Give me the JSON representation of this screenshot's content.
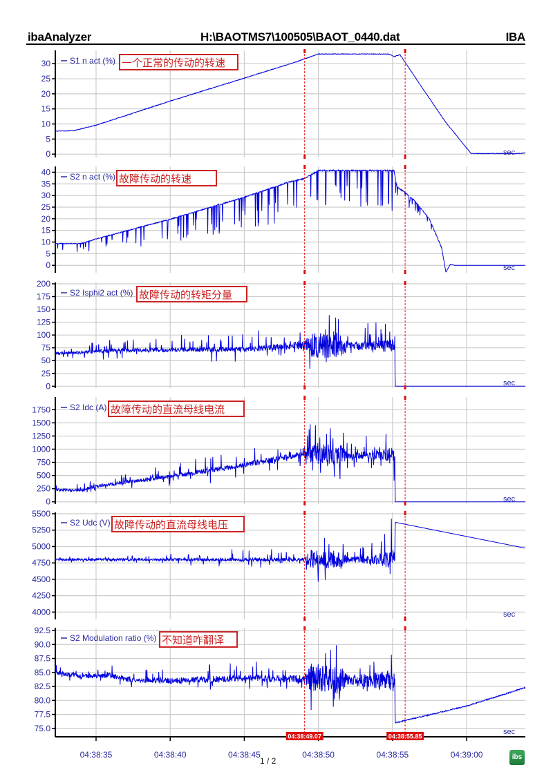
{
  "header": {
    "app": "ibaAnalyzer",
    "file": "H:\\BAOTMS7\\100505\\BAOT_0440.dat",
    "brand": "IBA"
  },
  "footer": {
    "page": "1 / 2",
    "logo": "ibs"
  },
  "colors": {
    "signal": "#0000dd",
    "annotation": "#cc2222",
    "cursor": "#dd1111",
    "axis_text": "#2a2aa0",
    "grid": "#cccccc"
  },
  "chart_data": {
    "type": "line",
    "x_unit_label": "sec",
    "x_range_seconds": [
      32.25,
      63.96
    ],
    "x_ticks": [
      {
        "t": 35,
        "label": "04:38:35"
      },
      {
        "t": 40,
        "label": "04:38:40"
      },
      {
        "t": 45,
        "label": "04:38:45"
      },
      {
        "t": 50,
        "label": "04:38:50"
      },
      {
        "t": 55,
        "label": "04:38:55"
      },
      {
        "t": 60,
        "label": "04:39:00"
      }
    ],
    "cursors": [
      {
        "t": 49.07,
        "label": "04:38:49.07"
      },
      {
        "t": 55.85,
        "label": "04:38:55.85"
      }
    ],
    "panels": [
      {
        "legend": "S1 n act (%)",
        "annotation": "一个正常的传动的转速",
        "ylim": [
          -1.1,
          34.4
        ],
        "yticks": [
          0,
          5,
          10,
          15,
          20,
          25,
          30
        ],
        "tick_labels": [
          "0",
          "5",
          "10",
          "15",
          "20",
          "25",
          "30"
        ],
        "mean": [
          [
            32.25,
            7.6
          ],
          [
            33.5,
            7.8
          ],
          [
            35,
            9.6
          ],
          [
            40,
            17.6
          ],
          [
            45,
            25.2
          ],
          [
            48.5,
            30.6
          ],
          [
            50,
            33.2
          ],
          [
            54.8,
            33.2
          ],
          [
            55.1,
            32.3
          ],
          [
            55.5,
            33
          ],
          [
            57,
            22
          ],
          [
            58.6,
            10.5
          ],
          [
            60.3,
            0.2
          ],
          [
            63.5,
            0.2
          ],
          [
            63.96,
            0.4
          ]
        ],
        "noise": [
          [
            32,
            0.1
          ],
          [
            64,
            0.1
          ]
        ],
        "spikes": [
          [
            32,
            0
          ],
          [
            64,
            0
          ]
        ],
        "spike_dir": "both"
      },
      {
        "legend": "S2 n act (%)",
        "annotation": "故障传动的转速",
        "ylim": [
          -3.2,
          42.5
        ],
        "yticks": [
          0,
          5,
          10,
          15,
          20,
          25,
          30,
          35,
          40
        ],
        "tick_labels": [
          "0",
          "5",
          "10",
          "15",
          "20",
          "25",
          "30",
          "35",
          "40"
        ],
        "mean": [
          [
            32.25,
            9.5
          ],
          [
            34,
            9.5
          ],
          [
            35,
            11.5
          ],
          [
            40,
            20
          ],
          [
            45,
            29.5
          ],
          [
            48,
            36
          ],
          [
            49.07,
            37.5
          ],
          [
            50,
            41
          ],
          [
            55.1,
            41
          ],
          [
            55.3,
            34
          ],
          [
            55.85,
            31.5
          ],
          [
            56.5,
            28
          ],
          [
            57.5,
            20
          ],
          [
            58.3,
            8
          ],
          [
            58.6,
            -3
          ],
          [
            58.9,
            0.5
          ],
          [
            59.2,
            0
          ],
          [
            63.96,
            0
          ]
        ],
        "noise": [
          [
            32,
            0.3
          ],
          [
            55.2,
            0.6
          ],
          [
            58.3,
            0.5
          ],
          [
            58.4,
            0
          ],
          [
            64,
            0
          ]
        ],
        "spikes": [
          [
            32,
            4
          ],
          [
            35,
            6
          ],
          [
            40,
            10
          ],
          [
            45,
            14
          ],
          [
            49,
            18
          ],
          [
            52,
            15
          ],
          [
            55,
            20
          ],
          [
            55.2,
            6
          ],
          [
            57.5,
            4
          ],
          [
            58.3,
            0
          ],
          [
            64,
            0
          ]
        ],
        "spike_dir": "down"
      },
      {
        "legend": "S2 Isphi2 act (%)",
        "annotation": "故障传动的转矩分量",
        "ylim": [
          -3.6,
          202.7
        ],
        "yticks": [
          0,
          25,
          50,
          75,
          100,
          125,
          150,
          175,
          200
        ],
        "tick_labels": [
          "0",
          "25",
          "50",
          "75",
          "100",
          "125",
          "150",
          "175",
          "200"
        ],
        "mean": [
          [
            32.25,
            64
          ],
          [
            34,
            66
          ],
          [
            36,
            70
          ],
          [
            45,
            72
          ],
          [
            49,
            80
          ],
          [
            55.15,
            78
          ],
          [
            55.18,
            0
          ],
          [
            63.96,
            0
          ]
        ],
        "noise": [
          [
            32,
            3
          ],
          [
            45,
            5
          ],
          [
            49,
            8
          ],
          [
            49.5,
            25
          ],
          [
            51.5,
            25
          ],
          [
            52,
            8
          ],
          [
            54,
            10
          ],
          [
            55.1,
            15
          ],
          [
            55.18,
            0
          ],
          [
            64,
            0
          ]
        ],
        "spikes": [
          [
            32,
            8
          ],
          [
            35,
            25
          ],
          [
            45,
            35
          ],
          [
            49,
            20
          ],
          [
            49.5,
            55
          ],
          [
            51.5,
            50
          ],
          [
            52,
            25
          ],
          [
            54,
            45
          ],
          [
            55.1,
            60
          ],
          [
            55.18,
            0
          ],
          [
            64,
            0
          ]
        ],
        "spike_dir": "both"
      },
      {
        "legend": "S2 Idc (A)",
        "annotation": "故障传动的直流母线电流",
        "ylim": [
          -43,
          1990
        ],
        "yticks": [
          0,
          250,
          500,
          750,
          1000,
          1250,
          1500,
          1750
        ],
        "tick_labels": [
          "0",
          "250",
          "500",
          "750",
          "1000",
          "1250",
          "1500",
          "1750"
        ],
        "mean": [
          [
            32.25,
            230
          ],
          [
            34,
            220
          ],
          [
            35,
            300
          ],
          [
            40,
            480
          ],
          [
            45,
            700
          ],
          [
            49,
            900
          ],
          [
            52,
            880
          ],
          [
            55.15,
            900
          ],
          [
            55.18,
            0
          ],
          [
            63.96,
            0
          ]
        ],
        "noise": [
          [
            32,
            25
          ],
          [
            45,
            50
          ],
          [
            49,
            60
          ],
          [
            49.5,
            200
          ],
          [
            51.5,
            200
          ],
          [
            52,
            60
          ],
          [
            54,
            100
          ],
          [
            55.1,
            150
          ],
          [
            55.18,
            0
          ],
          [
            64,
            0
          ]
        ],
        "spikes": [
          [
            32,
            80
          ],
          [
            40,
            200
          ],
          [
            45,
            350
          ],
          [
            49,
            200
          ],
          [
            49.5,
            600
          ],
          [
            51.5,
            500
          ],
          [
            52,
            200
          ],
          [
            54,
            400
          ],
          [
            55.1,
            600
          ],
          [
            55.18,
            0
          ],
          [
            64,
            0
          ]
        ],
        "spike_dir": "both"
      },
      {
        "legend": "S2 Udc (V)",
        "annotation": "故障传动的直流母线电压",
        "ylim": [
          3888,
          5521
        ],
        "yticks": [
          4000,
          4250,
          4500,
          4750,
          5000,
          5250,
          5500
        ],
        "tick_labels": [
          "4000",
          "4250",
          "4500",
          "4750",
          "5000",
          "5250",
          "5500"
        ],
        "mean": [
          [
            32.25,
            4800
          ],
          [
            55.15,
            4800
          ],
          [
            55.18,
            5370
          ],
          [
            63.96,
            4975
          ]
        ],
        "noise": [
          [
            32,
            15
          ],
          [
            45,
            25
          ],
          [
            49,
            30
          ],
          [
            49.5,
            150
          ],
          [
            51.5,
            150
          ],
          [
            52,
            40
          ],
          [
            54,
            80
          ],
          [
            55.1,
            150
          ],
          [
            55.18,
            0
          ],
          [
            64,
            0
          ]
        ],
        "spikes": [
          [
            32,
            30
          ],
          [
            40,
            80
          ],
          [
            45,
            200
          ],
          [
            49,
            80
          ],
          [
            49.5,
            450
          ],
          [
            51.5,
            400
          ],
          [
            52,
            100
          ],
          [
            54,
            300
          ],
          [
            55.1,
            600
          ],
          [
            55.18,
            0
          ],
          [
            64,
            0
          ]
        ],
        "spike_dir": "both"
      },
      {
        "legend": "S2 Modulation ratio (%)",
        "annotation": "不知道咋翻译",
        "ylim": [
          73.5,
          93.0
        ],
        "yticks": [
          75,
          77.5,
          80,
          82.5,
          85,
          87.5,
          90,
          92.5
        ],
        "tick_labels": [
          "75.0",
          "77.5",
          "80.0",
          "82.5",
          "85.0",
          "87.5",
          "90.0",
          "92.5"
        ],
        "mean": [
          [
            32.25,
            85
          ],
          [
            34,
            84.3
          ],
          [
            36,
            84.5
          ],
          [
            37,
            83.8
          ],
          [
            40,
            83.5
          ],
          [
            45,
            84
          ],
          [
            49,
            83.8
          ],
          [
            55.15,
            83.5
          ],
          [
            55.18,
            76
          ],
          [
            56,
            76.5
          ],
          [
            60,
            79
          ],
          [
            63.96,
            82.3
          ]
        ],
        "noise": [
          [
            32,
            0.4
          ],
          [
            45,
            0.6
          ],
          [
            49,
            0.7
          ],
          [
            49.5,
            2.5
          ],
          [
            51.5,
            2.5
          ],
          [
            52,
            0.8
          ],
          [
            54,
            1.5
          ],
          [
            55.1,
            2
          ],
          [
            55.18,
            0.1
          ],
          [
            64,
            0.1
          ]
        ],
        "spikes": [
          [
            32,
            1
          ],
          [
            40,
            2
          ],
          [
            45,
            3
          ],
          [
            49,
            1.5
          ],
          [
            49.5,
            6
          ],
          [
            51.5,
            5
          ],
          [
            52,
            2
          ],
          [
            54,
            4
          ],
          [
            55.1,
            8
          ],
          [
            55.18,
            0
          ],
          [
            64,
            0
          ]
        ],
        "spike_dir": "both"
      }
    ]
  }
}
